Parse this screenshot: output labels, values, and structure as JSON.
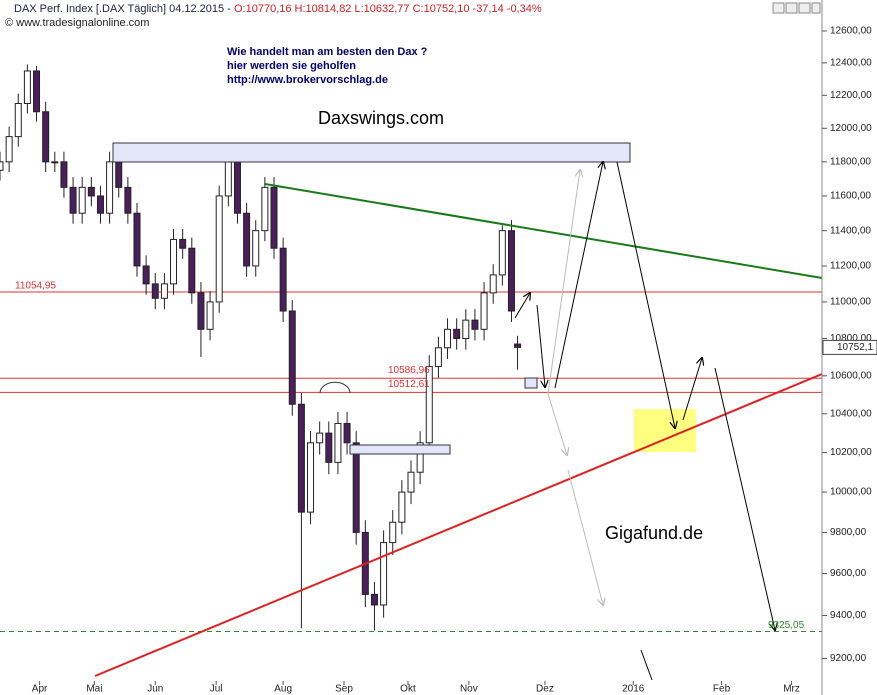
{
  "chart_data": {
    "type": "candlestick",
    "header": "DAX Perf. Index [.DAX  Täglich] 04.12.2015 -",
    "header_ohlc": "O:10770,16 H:10814,82 L:10632,77 C:10752,10 -37,14 -0,34%",
    "copyright": "© www.tradesignalonline.com",
    "annotations": [
      "Wie handelt man am besten  den Dax ?",
      "hier werden sie geholfen",
      "http://www.brokervorschlag.de",
      "Daxswings.com",
      "Gigafund.de"
    ],
    "log_scale": true,
    "xlim": [
      0,
      270
    ],
    "xticks": [
      {
        "value": 13,
        "label": "Apr"
      },
      {
        "value": 31,
        "label": "Mai"
      },
      {
        "value": 51,
        "label": "Jun"
      },
      {
        "value": 71,
        "label": "Jul"
      },
      {
        "value": 93,
        "label": "Aug"
      },
      {
        "value": 113,
        "label": "Sep"
      },
      {
        "value": 134,
        "label": "Okt"
      },
      {
        "value": 154,
        "label": "Nov"
      },
      {
        "value": 179,
        "label": "Dez"
      },
      {
        "value": 208,
        "label": "2016"
      },
      {
        "value": 237,
        "label": "Feb"
      },
      {
        "value": 260,
        "label": "Mrz"
      }
    ],
    "ylim": [
      9033,
      12797
    ],
    "yticks": [
      {
        "value": 9200,
        "label": "9200,00"
      },
      {
        "value": 9400,
        "label": "9400,00"
      },
      {
        "value": 9600,
        "label": "9600,00"
      },
      {
        "value": 9800,
        "label": "9800,00"
      },
      {
        "value": 10000,
        "label": "10000,00"
      },
      {
        "value": 10200,
        "label": "10200,00"
      },
      {
        "value": 10400,
        "label": "10400,00"
      },
      {
        "value": 10600,
        "label": "10600,00"
      },
      {
        "value": 10800,
        "label": "10800,00"
      },
      {
        "value": 11000,
        "label": "11000,00"
      },
      {
        "value": 11200,
        "label": "11200,00"
      },
      {
        "value": 11400,
        "label": "11400,00"
      },
      {
        "value": 11600,
        "label": "11600,00"
      },
      {
        "value": 11800,
        "label": "11800,00"
      },
      {
        "value": 12000,
        "label": "12000,00"
      },
      {
        "value": 12200,
        "label": "12200,00"
      },
      {
        "value": 12400,
        "label": "12400,00"
      },
      {
        "value": 12600,
        "label": "12600,00"
      }
    ],
    "up_color": "#ffffff",
    "down_color": "#4a1f5c",
    "x": [
      0,
      3,
      6,
      9,
      12,
      15,
      18,
      21,
      24,
      27,
      30,
      33,
      36,
      39,
      42,
      45,
      48,
      51,
      54,
      57,
      60,
      63,
      66,
      69,
      72,
      75,
      78,
      81,
      84,
      87,
      90,
      93,
      96,
      99,
      102,
      105,
      108,
      111,
      114,
      117,
      120,
      123,
      126,
      129,
      132,
      135,
      138,
      141,
      144,
      147,
      150,
      153,
      156,
      159,
      162,
      165,
      168,
      170
    ],
    "open": [
      11750,
      11800,
      11950,
      12150,
      12350,
      12100,
      11800,
      11800,
      11650,
      11500,
      11650,
      11600,
      11500,
      11800,
      11650,
      11500,
      11200,
      11100,
      11020,
      11100,
      11350,
      11300,
      11050,
      10850,
      11000,
      11600,
      11800,
      11500,
      11200,
      11400,
      11650,
      11300,
      10950,
      10450,
      9900,
      10250,
      10300,
      10150,
      10350,
      10250,
      9800,
      9500,
      9450,
      9750,
      9850,
      10000,
      10100,
      10250,
      10650,
      10750,
      10850,
      10800,
      10900,
      10850,
      11050,
      11150,
      11400,
      10770.16
    ],
    "high": [
      11860,
      12010,
      12210,
      12390,
      12380,
      12160,
      11860,
      11860,
      11710,
      11710,
      11710,
      11660,
      11860,
      11860,
      11710,
      11560,
      11260,
      11160,
      11160,
      11410,
      11410,
      11360,
      11110,
      11060,
      11660,
      11860,
      11860,
      11560,
      11460,
      11710,
      11710,
      11360,
      11010,
      10510,
      10310,
      10360,
      10360,
      10410,
      10410,
      10310,
      9860,
      9560,
      9810,
      9910,
      10060,
      10160,
      10310,
      10710,
      10810,
      10910,
      10910,
      10960,
      10960,
      11110,
      11210,
      11430,
      11460,
      10814.82
    ],
    "low": [
      11690,
      11740,
      11890,
      12090,
      12040,
      11740,
      11740,
      11590,
      11440,
      11440,
      11540,
      11440,
      11440,
      11590,
      11440,
      11140,
      11040,
      10960,
      10960,
      11040,
      11240,
      10990,
      10700,
      10790,
      10940,
      11540,
      11440,
      11140,
      11140,
      11340,
      11240,
      10890,
      10390,
      9340,
      9840,
      10190,
      10090,
      10090,
      10190,
      9740,
      9440,
      9330,
      9390,
      9690,
      9790,
      9940,
      10040,
      10190,
      10590,
      10690,
      10740,
      10740,
      10790,
      10790,
      10990,
      11090,
      10890,
      10632.77
    ],
    "close": [
      11800,
      11950,
      12150,
      12350,
      12100,
      11800,
      11800,
      11650,
      11500,
      11650,
      11600,
      11500,
      11800,
      11650,
      11500,
      11200,
      11100,
      11020,
      11100,
      11350,
      11300,
      11050,
      10850,
      11000,
      11600,
      11800,
      11500,
      11200,
      11400,
      11650,
      11300,
      10950,
      10450,
      9900,
      10250,
      10300,
      10150,
      10350,
      10250,
      9800,
      9500,
      9450,
      9750,
      9850,
      10000,
      10100,
      10250,
      10650,
      10750,
      10850,
      10800,
      10900,
      10850,
      11050,
      11150,
      11400,
      10950,
      10752.1
    ],
    "last_price": {
      "value": 10752.1,
      "label": "10752,1"
    },
    "levels": [
      {
        "value": 11054.95,
        "label": "11054,95",
        "color": "#e03030"
      },
      {
        "value": 10586.96,
        "label": "10586,96",
        "color": "#e03030"
      },
      {
        "value": 10512.61,
        "label": "10512,61",
        "color": "#e03030"
      },
      {
        "value": 9325.05,
        "label": "9325,05",
        "color": "#2a8a2a",
        "dashed": true
      }
    ]
  }
}
